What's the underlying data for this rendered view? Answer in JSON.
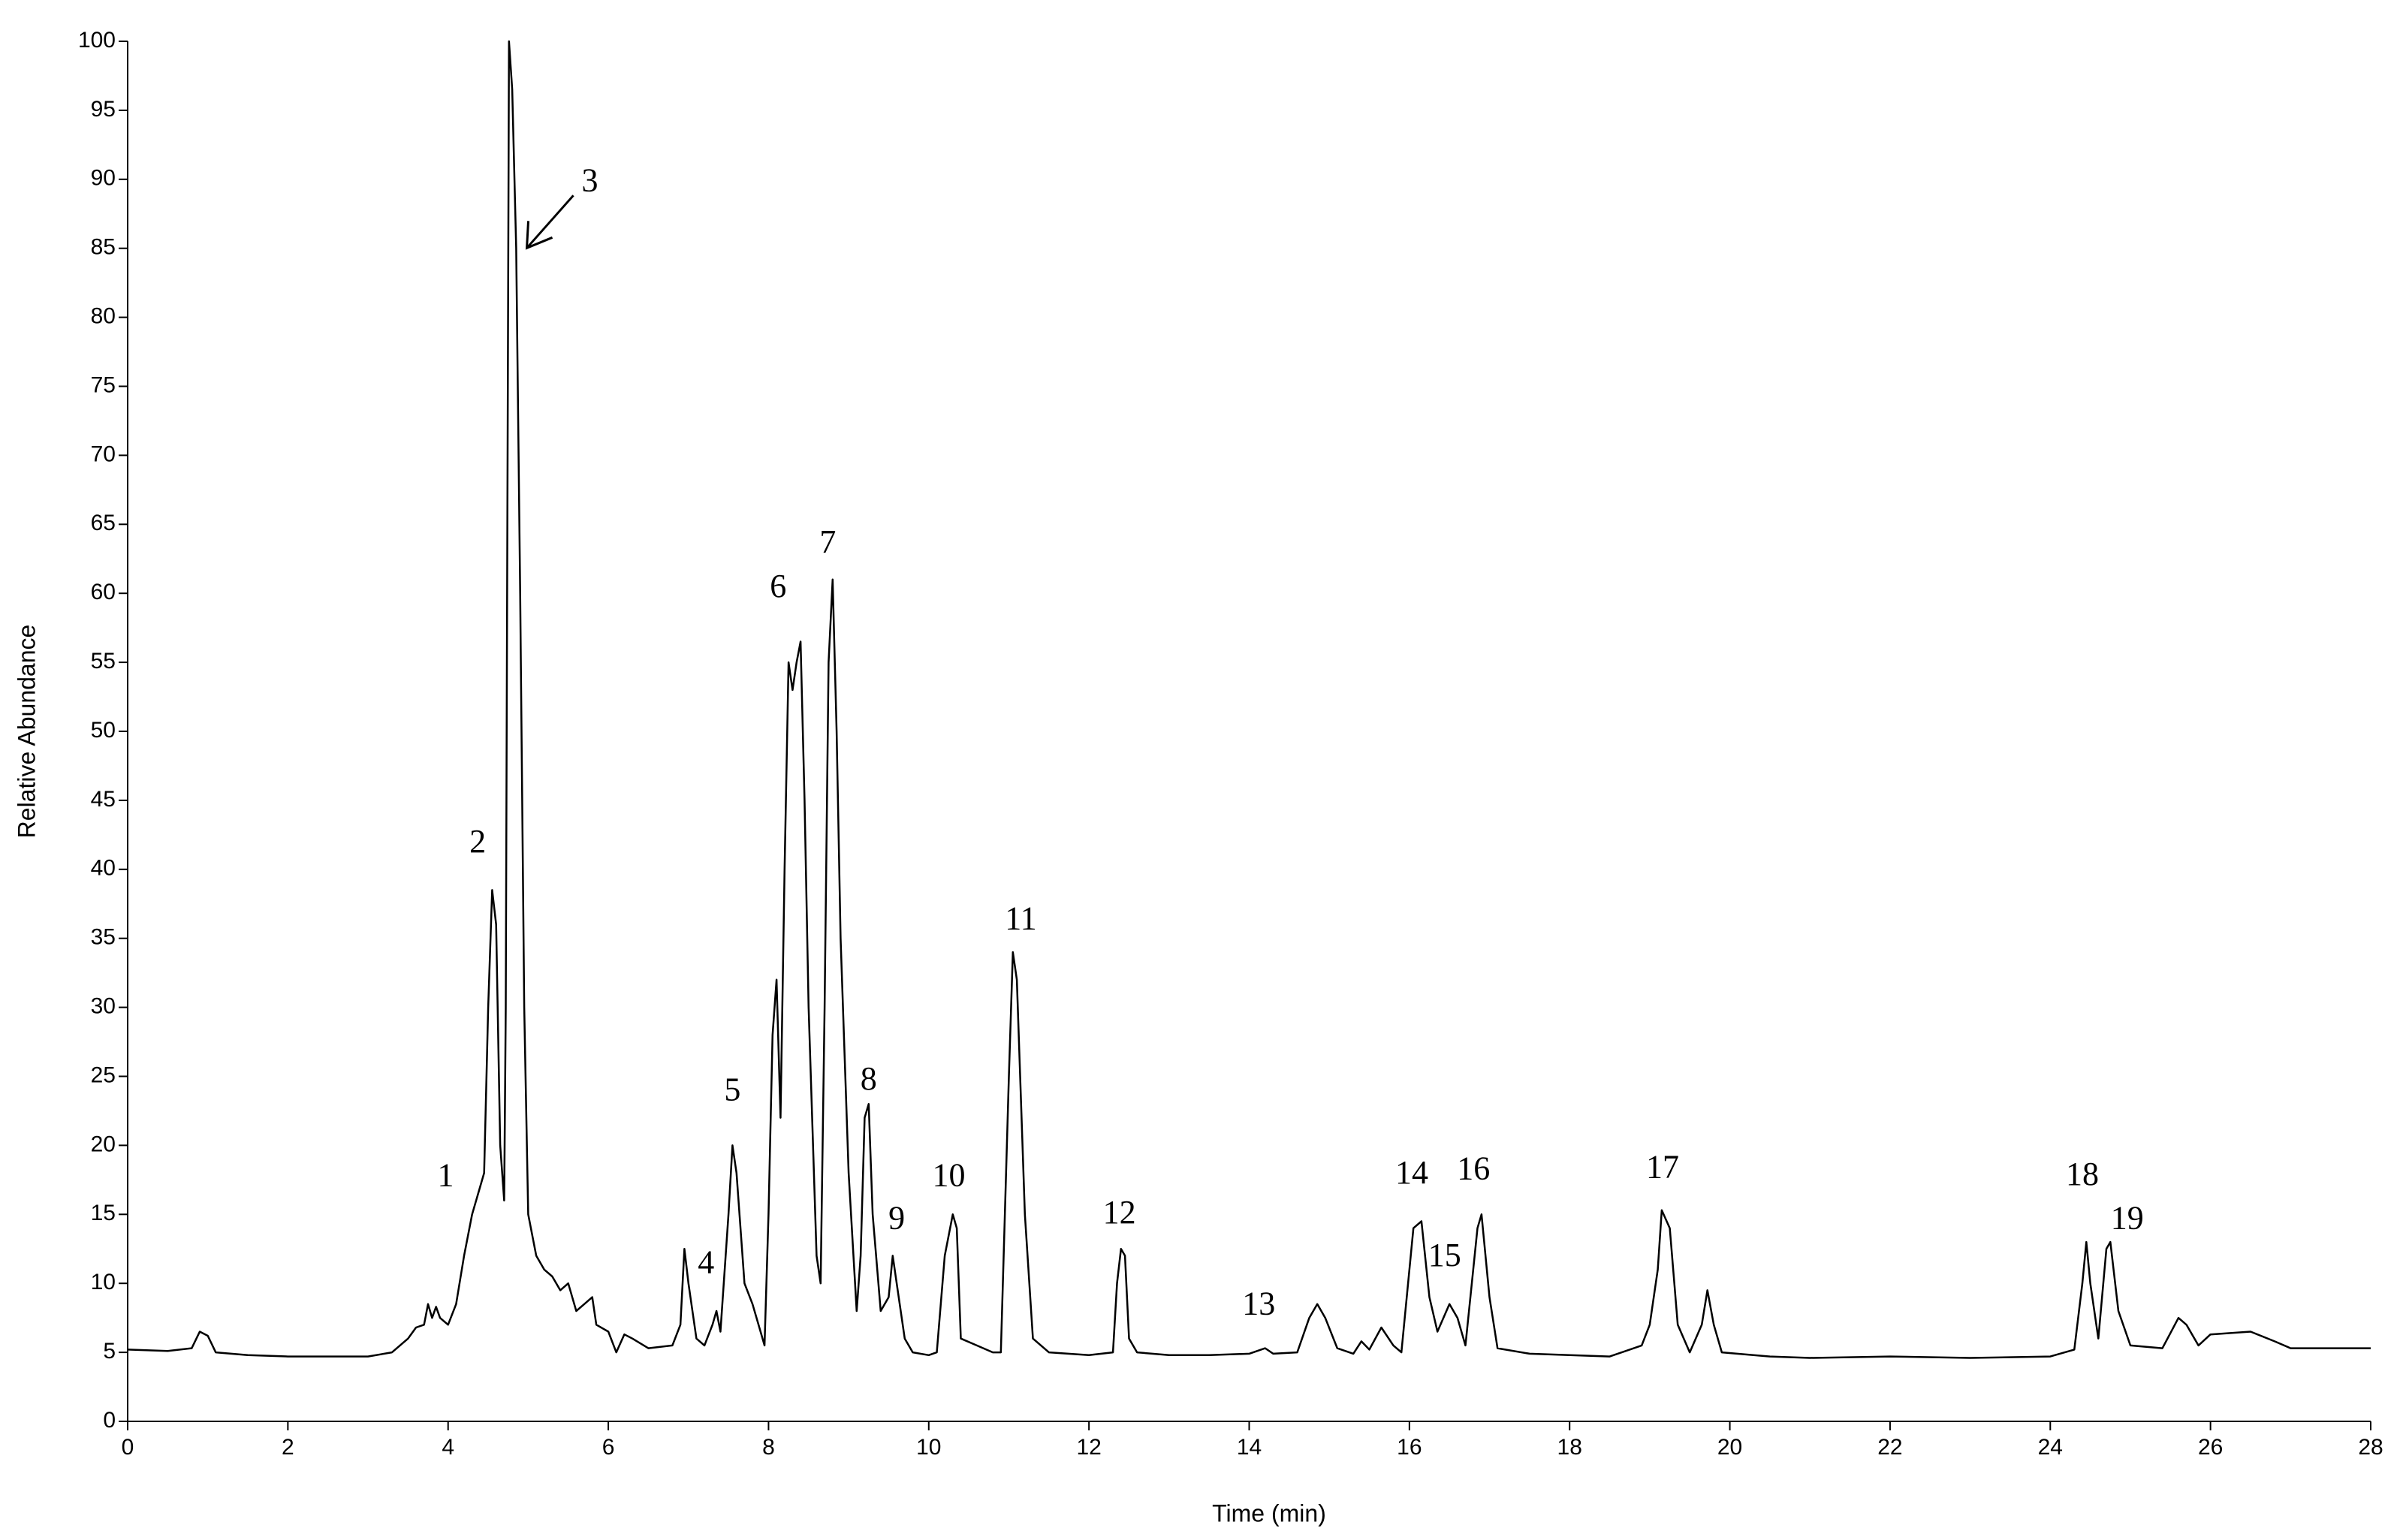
{
  "chart_data": {
    "type": "line",
    "xlabel": "Time (min)",
    "ylabel": "Relative Abundance",
    "xlim": [
      0,
      28
    ],
    "xticks": [
      0,
      2,
      4,
      6,
      8,
      10,
      12,
      14,
      16,
      18,
      20,
      22,
      24,
      26,
      28
    ],
    "ylim": [
      0,
      100
    ],
    "yticks": [
      0,
      5,
      10,
      15,
      20,
      25,
      30,
      35,
      40,
      45,
      50,
      55,
      60,
      65,
      70,
      75,
      80,
      85,
      90,
      95,
      100
    ],
    "color": "#000000",
    "x": [
      0,
      0.5,
      0.8,
      0.9,
      1.0,
      1.1,
      1.5,
      2.0,
      2.5,
      3.0,
      3.3,
      3.5,
      3.6,
      3.7,
      3.75,
      3.8,
      3.85,
      3.9,
      4.0,
      4.1,
      4.2,
      4.3,
      4.4,
      4.45,
      4.5,
      4.55,
      4.6,
      4.65,
      4.7,
      4.72,
      4.76,
      4.8,
      4.85,
      4.9,
      4.95,
      5.0,
      5.1,
      5.2,
      5.3,
      5.4,
      5.5,
      5.6,
      5.7,
      5.8,
      5.85,
      6.0,
      6.1,
      6.2,
      6.3,
      6.5,
      6.8,
      6.9,
      6.95,
      7.0,
      7.05,
      7.1,
      7.2,
      7.3,
      7.35,
      7.4,
      7.5,
      7.55,
      7.6,
      7.7,
      7.8,
      7.9,
      7.95,
      8.0,
      8.05,
      8.1,
      8.15,
      8.2,
      8.25,
      8.3,
      8.35,
      8.4,
      8.45,
      8.5,
      8.6,
      8.65,
      8.7,
      8.75,
      8.8,
      8.85,
      8.9,
      9.0,
      9.1,
      9.15,
      9.2,
      9.25,
      9.3,
      9.4,
      9.5,
      9.55,
      9.6,
      9.7,
      9.8,
      10.0,
      10.1,
      10.2,
      10.3,
      10.35,
      10.4,
      10.6,
      10.8,
      10.9,
      11.0,
      11.05,
      11.1,
      11.2,
      11.3,
      11.5,
      12.0,
      12.3,
      12.35,
      12.4,
      12.45,
      12.5,
      12.6,
      13,
      13.5,
      14,
      14.2,
      14.3,
      14.6,
      14.75,
      14.85,
      14.95,
      15.1,
      15.3,
      15.4,
      15.5,
      15.65,
      15.8,
      15.9,
      16.05,
      16.15,
      16.25,
      16.35,
      16.5,
      16.6,
      16.7,
      16.85,
      16.9,
      17.0,
      17.1,
      17.5,
      18,
      18.5,
      18.9,
      19.0,
      19.1,
      19.15,
      19.25,
      19.35,
      19.5,
      19.65,
      19.72,
      19.8,
      19.9,
      20.5,
      21,
      22,
      23,
      24,
      24.3,
      24.4,
      24.45,
      24.5,
      24.6,
      24.7,
      24.75,
      24.85,
      25.0,
      25.4,
      25.6,
      25.7,
      25.85,
      26,
      26.5,
      26.8,
      27,
      27.5,
      28
    ],
    "values": [
      5.2,
      5.1,
      5.3,
      6.5,
      6.2,
      5.0,
      4.8,
      4.7,
      4.7,
      4.7,
      5.0,
      6.0,
      6.8,
      7.0,
      8.5,
      7.5,
      8.3,
      7.5,
      7.0,
      8.5,
      12,
      15,
      17,
      18,
      30,
      38.5,
      36,
      20,
      16,
      30,
      100,
      96.5,
      85,
      60,
      30,
      15,
      12,
      11,
      10.5,
      9.5,
      10,
      8,
      8.5,
      9,
      7,
      6.5,
      5.0,
      6.3,
      6.0,
      5.3,
      5.5,
      7,
      12.5,
      10,
      8,
      6,
      5.5,
      7,
      8,
      6.5,
      15,
      20,
      18,
      10,
      8.5,
      6.5,
      5.5,
      15,
      28,
      32,
      22,
      40,
      55,
      53,
      55,
      56.5,
      45,
      30,
      12,
      10,
      30,
      55,
      61,
      50,
      35,
      18,
      8,
      12,
      22,
      23,
      15,
      8,
      9,
      12,
      10,
      6,
      5,
      4.8,
      5,
      12,
      15,
      14,
      6,
      5.5,
      5,
      5,
      25,
      34,
      32,
      15,
      6,
      5,
      4.8,
      5,
      10,
      12.5,
      12,
      6,
      5,
      4.8,
      4.8,
      4.9,
      5.3,
      4.9,
      5,
      7.5,
      8.5,
      7.5,
      5.3,
      4.9,
      5.8,
      5.2,
      6.8,
      5.5,
      5.0,
      14,
      14.5,
      9,
      6.5,
      8.5,
      7.5,
      5.5,
      14,
      15,
      9,
      5.3,
      4.9,
      4.8,
      4.7,
      5.5,
      7,
      11,
      15.3,
      14,
      7,
      5,
      7,
      9.5,
      7,
      5.0,
      4.7,
      4.6,
      4.7,
      4.6,
      4.7,
      5.2,
      10,
      13,
      10,
      6,
      12.5,
      13,
      8,
      5.5,
      5.3,
      7.5,
      7,
      5.5,
      6.3,
      6.5,
      5.8,
      5.3,
      5.3,
      5.3
    ],
    "annotations": [
      {
        "text": "1",
        "x": 3.97,
        "y": 17.6
      },
      {
        "text": "2",
        "x": 4.37,
        "y": 41.8
      },
      {
        "text": "3",
        "x": 5.77,
        "y": 89.7
      },
      {
        "text": "4",
        "x": 7.22,
        "y": 11.3
      },
      {
        "text": "5",
        "x": 7.55,
        "y": 23.8
      },
      {
        "text": "6",
        "x": 8.12,
        "y": 60.3
      },
      {
        "text": "7",
        "x": 8.74,
        "y": 63.5
      },
      {
        "text": "8",
        "x": 9.25,
        "y": 24.6
      },
      {
        "text": "9",
        "x": 9.6,
        "y": 14.5
      },
      {
        "text": "10",
        "x": 10.25,
        "y": 17.6
      },
      {
        "text": "11",
        "x": 11.15,
        "y": 36.2
      },
      {
        "text": "12",
        "x": 12.38,
        "y": 14.9
      },
      {
        "text": "13",
        "x": 14.12,
        "y": 8.3
      },
      {
        "text": "14",
        "x": 16.03,
        "y": 17.8
      },
      {
        "text": "15",
        "x": 16.44,
        "y": 11.8
      },
      {
        "text": "16",
        "x": 16.8,
        "y": 18.1
      },
      {
        "text": "17",
        "x": 19.16,
        "y": 18.2
      },
      {
        "text": "18",
        "x": 24.4,
        "y": 17.7
      },
      {
        "text": "19",
        "x": 24.96,
        "y": 14.5
      }
    ]
  }
}
